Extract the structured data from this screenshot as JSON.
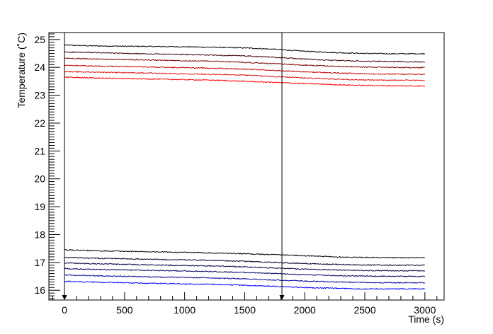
{
  "chart_data": {
    "type": "line",
    "xlabel": "Time (s)",
    "ylabel": "Temperature (˚C)",
    "xlim": [
      -130,
      3160
    ],
    "ylim": [
      15.65,
      25.25
    ],
    "grid": false,
    "legend": "none",
    "x_ticks": [
      0,
      500,
      1000,
      1500,
      2000,
      2500,
      3000
    ],
    "y_ticks": [
      16,
      17,
      18,
      19,
      20,
      21,
      22,
      23,
      24,
      25
    ],
    "markers": [
      {
        "x": 0,
        "label": ""
      },
      {
        "x": 1810,
        "label": ""
      }
    ],
    "x": [
      0,
      250,
      500,
      750,
      1000,
      1250,
      1500,
      1750,
      2000,
      2250,
      2500,
      2750,
      3000
    ],
    "series": [
      {
        "color": "#000000",
        "values": [
          24.8,
          24.77,
          24.76,
          24.75,
          24.74,
          24.72,
          24.7,
          24.65,
          24.58,
          24.53,
          24.5,
          24.49,
          24.49
        ]
      },
      {
        "color": "#3a0000",
        "values": [
          24.55,
          24.53,
          24.5,
          24.48,
          24.46,
          24.44,
          24.41,
          24.36,
          24.3,
          24.25,
          24.22,
          24.21,
          24.2
        ]
      },
      {
        "color": "#800000",
        "values": [
          24.33,
          24.3,
          24.28,
          24.26,
          24.24,
          24.22,
          24.18,
          24.13,
          24.08,
          24.04,
          24.01,
          24.0,
          23.99
        ]
      },
      {
        "color": "#c00000",
        "values": [
          24.07,
          24.05,
          24.03,
          24.01,
          23.99,
          23.97,
          23.94,
          23.89,
          23.84,
          23.8,
          23.77,
          23.76,
          23.75
        ]
      },
      {
        "color": "#e01010",
        "values": [
          23.85,
          23.83,
          23.81,
          23.79,
          23.77,
          23.75,
          23.72,
          23.67,
          23.62,
          23.58,
          23.55,
          23.54,
          23.53
        ]
      },
      {
        "color": "#ff0000",
        "values": [
          23.65,
          23.62,
          23.6,
          23.58,
          23.56,
          23.54,
          23.5,
          23.46,
          23.42,
          23.38,
          23.35,
          23.34,
          23.33
        ]
      },
      {
        "color": "#000000",
        "values": [
          17.45,
          17.42,
          17.4,
          17.38,
          17.36,
          17.34,
          17.31,
          17.28,
          17.24,
          17.2,
          17.18,
          17.17,
          17.17
        ]
      },
      {
        "color": "#000022",
        "values": [
          17.18,
          17.15,
          17.13,
          17.11,
          17.09,
          17.07,
          17.04,
          17.0,
          16.96,
          16.93,
          16.91,
          16.9,
          16.9
        ]
      },
      {
        "color": "#000044",
        "values": [
          16.98,
          16.95,
          16.93,
          16.91,
          16.89,
          16.87,
          16.84,
          16.8,
          16.76,
          16.73,
          16.71,
          16.7,
          16.7
        ]
      },
      {
        "color": "#000066",
        "values": [
          16.78,
          16.75,
          16.73,
          16.71,
          16.69,
          16.67,
          16.64,
          16.6,
          16.56,
          16.53,
          16.51,
          16.5,
          16.5
        ]
      },
      {
        "color": "#000099",
        "values": [
          16.55,
          16.52,
          16.5,
          16.48,
          16.46,
          16.44,
          16.41,
          16.37,
          16.33,
          16.3,
          16.28,
          16.27,
          16.27
        ]
      },
      {
        "color": "#0000ff",
        "values": [
          16.32,
          16.29,
          16.27,
          16.25,
          16.23,
          16.21,
          16.18,
          16.14,
          16.1,
          16.07,
          16.05,
          16.05,
          16.05
        ]
      }
    ]
  }
}
